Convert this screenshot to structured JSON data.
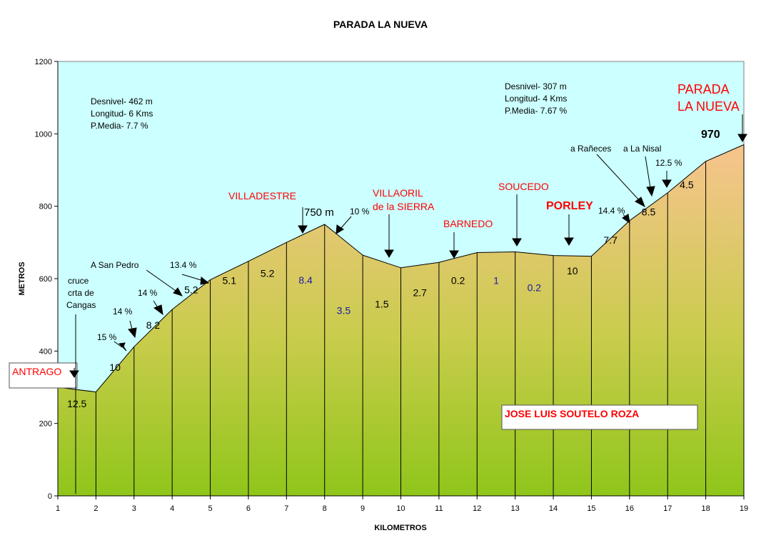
{
  "chart_data": {
    "type": "area",
    "title": "PARADA LA NUEVA",
    "xlabel": "KILOMETROS",
    "ylabel": "METROS",
    "xlim": [
      1,
      19
    ],
    "ylim": [
      0,
      1200
    ],
    "x_ticks": [
      "1",
      "2",
      "3",
      "4",
      "5",
      "6",
      "7",
      "8",
      "9",
      "10",
      "11",
      "12",
      "13",
      "14",
      "15",
      "16",
      "17",
      "18",
      "19"
    ],
    "y_ticks": [
      "0",
      "200",
      "400",
      "600",
      "800",
      "1000",
      "1200"
    ],
    "profile": [
      {
        "x": 1,
        "y": 300
      },
      {
        "x": 2,
        "y": 287
      },
      {
        "x": 3,
        "y": 412
      },
      {
        "x": 4,
        "y": 515
      },
      {
        "x": 5,
        "y": 597
      },
      {
        "x": 6,
        "y": 648
      },
      {
        "x": 7,
        "y": 700
      },
      {
        "x": 8,
        "y": 750
      },
      {
        "x": 9,
        "y": 665
      },
      {
        "x": 10,
        "y": 630
      },
      {
        "x": 11,
        "y": 645
      },
      {
        "x": 12,
        "y": 672
      },
      {
        "x": 13,
        "y": 674
      },
      {
        "x": 14,
        "y": 664
      },
      {
        "x": 15,
        "y": 662
      },
      {
        "x": 16,
        "y": 760
      },
      {
        "x": 17,
        "y": 837
      },
      {
        "x": 18,
        "y": 924
      },
      {
        "x": 19,
        "y": 970
      }
    ],
    "segment_grades": [
      {
        "x": 1.5,
        "y": 245,
        "label": "12.5",
        "color": "#000000"
      },
      {
        "x": 2.5,
        "y": 345,
        "label": "10",
        "color": "#000000"
      },
      {
        "x": 3.5,
        "y": 462,
        "label": "8.2",
        "color": "#000000"
      },
      {
        "x": 4.5,
        "y": 560,
        "label": "5.2",
        "color": "#000000"
      },
      {
        "x": 5.5,
        "y": 585,
        "label": "5.1",
        "color": "#000000"
      },
      {
        "x": 6.5,
        "y": 605,
        "label": "5.2",
        "color": "#000000"
      },
      {
        "x": 7.5,
        "y": 586,
        "label": "8.4",
        "color": "#1a1aaa"
      },
      {
        "x": 8.5,
        "y": 502,
        "label": "3.5",
        "color": "#1a1aaa"
      },
      {
        "x": 9.5,
        "y": 520,
        "label": "1.5",
        "color": "#000000"
      },
      {
        "x": 10.5,
        "y": 552,
        "label": "2.7",
        "color": "#000000"
      },
      {
        "x": 11.5,
        "y": 585,
        "label": "0.2",
        "color": "#000000"
      },
      {
        "x": 12.5,
        "y": 585,
        "label": "1",
        "color": "#1a1aaa"
      },
      {
        "x": 13.5,
        "y": 565,
        "label": "0.2",
        "color": "#1a1aaa"
      },
      {
        "x": 14.5,
        "y": 612,
        "label": "10",
        "color": "#000000"
      },
      {
        "x": 15.5,
        "y": 697,
        "label": "7.7",
        "color": "#000000"
      },
      {
        "x": 16.5,
        "y": 775,
        "label": "8.5",
        "color": "#000000"
      },
      {
        "x": 17.5,
        "y": 850,
        "label": "4.5",
        "color": "#000000"
      }
    ],
    "annotations": {
      "stats_1": [
        "Desnivel- 462 m",
        "Longitud- 6 Kms",
        "P.Media- 7.7 %"
      ],
      "stats_2": [
        "Desnivel- 307 m",
        "Longitud- 4 Kms",
        "P.Media- 7.67 %"
      ],
      "peak_label": "750 m",
      "summit_value": "970",
      "cruce": [
        "cruce",
        "crta de",
        "Cangas"
      ],
      "a_san_pedro": "A San Pedro",
      "grades": [
        "15 %",
        "14 %",
        "14 %",
        "13.4 %",
        "10 %",
        "14.4 %",
        "12.5 %"
      ],
      "a_ranneces": "a Rañeces",
      "a_la_nisal": "a La Nisal"
    },
    "places": {
      "antrago": "ANTRAGO",
      "villadestre": "VILLADESTRE",
      "villaoril": [
        "VILLAORIL",
        "de la SIERRA"
      ],
      "barnedo": "BARNEDO",
      "soucedo": "SOUCEDO",
      "porley": "PORLEY",
      "parada": [
        "PARADA",
        "LA NUEVA"
      ]
    },
    "author": "JOSE LUIS SOUTELO ROZA",
    "colors": {
      "sky": "#ccffff",
      "fill_top": "#f7c48e",
      "fill_mid": "#c9cc4c",
      "fill_bottom": "#8fc61a",
      "red_text": "#ff0000",
      "blue_text": "#1a1aaa"
    }
  }
}
